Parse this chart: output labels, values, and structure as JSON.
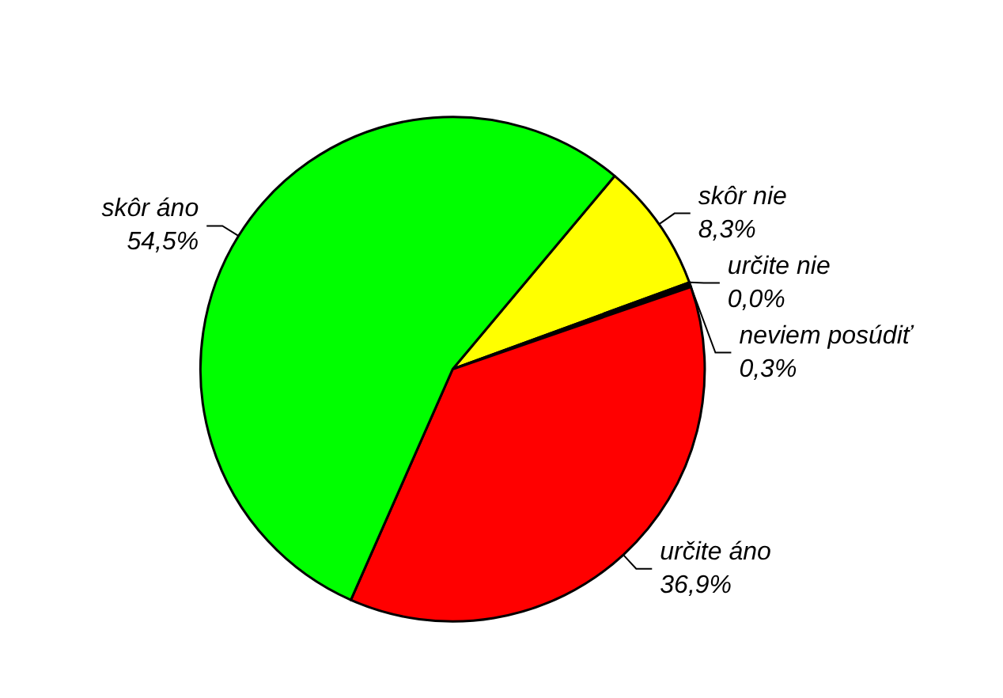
{
  "chart_data": {
    "type": "pie",
    "categories": [
      "skôr nie",
      "určite nie",
      "neviem posúdiť",
      "určite áno",
      "skôr áno"
    ],
    "values": [
      8.3,
      0.0,
      0.3,
      36.9,
      54.5
    ],
    "colors": [
      "#ffff00",
      "#000000",
      "#000000",
      "#ff0000",
      "#00ff00"
    ],
    "value_labels": [
      "8,3%",
      "0,0%",
      "0,3%",
      "36,9%",
      "54,5%"
    ]
  }
}
